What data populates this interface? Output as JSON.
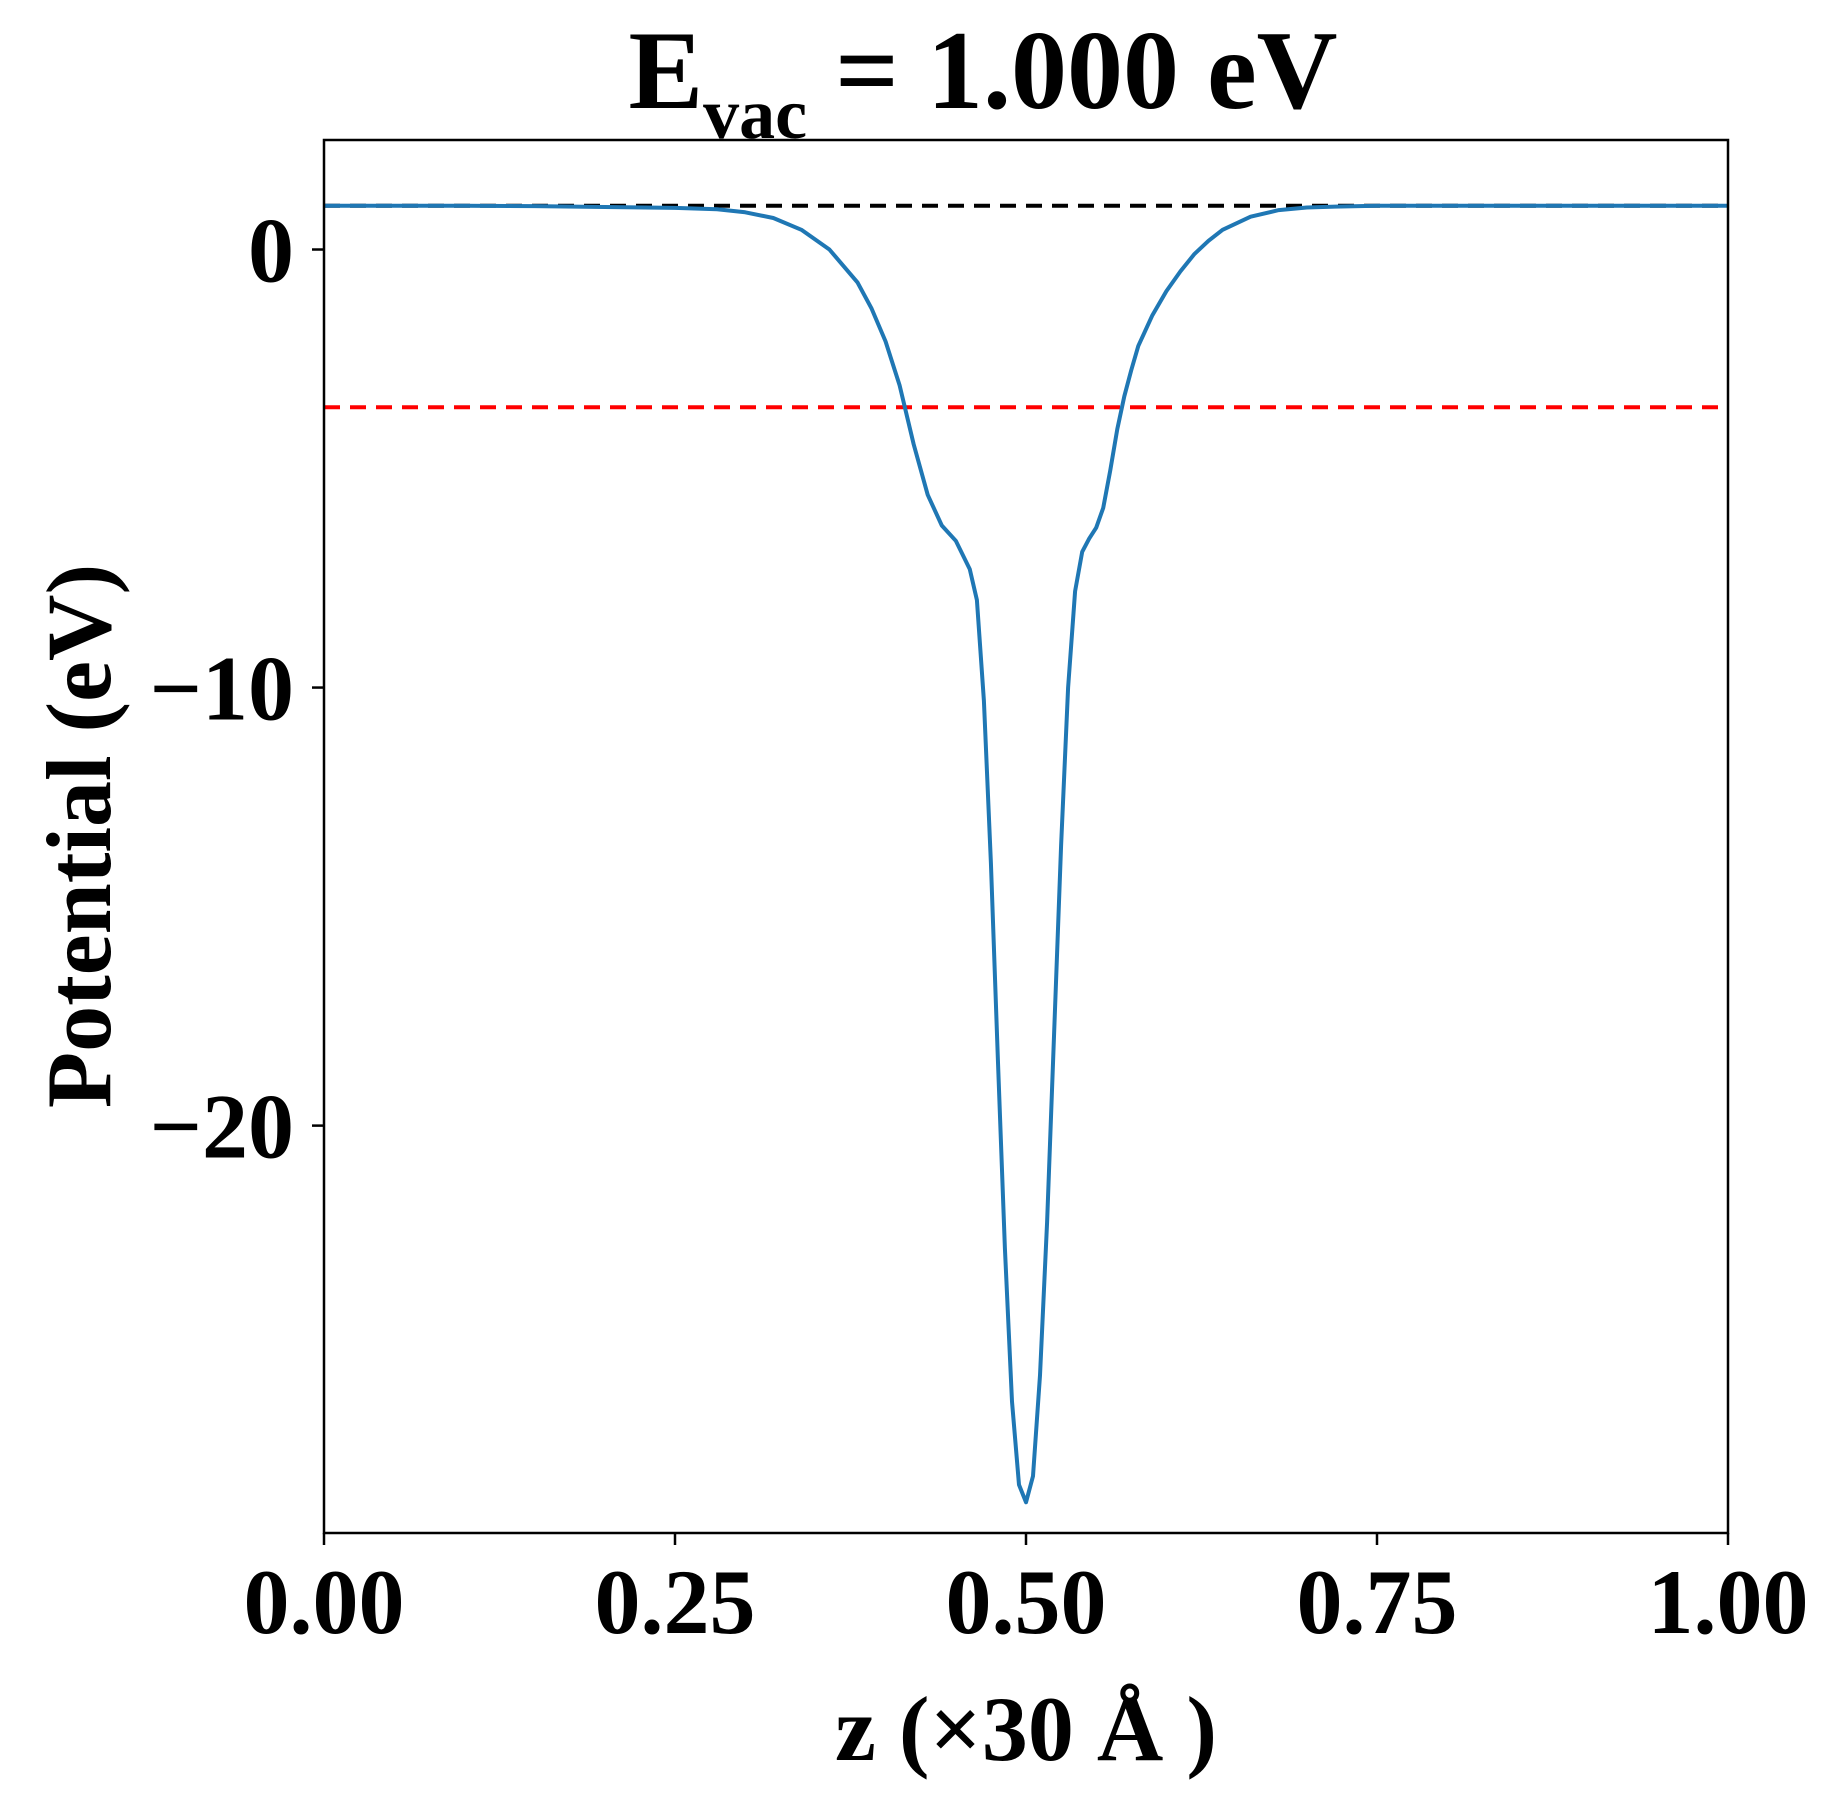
{
  "chart_data": {
    "type": "line",
    "title": {
      "main": "E",
      "subscript": "vac",
      "rest": " = 1.000 eV"
    },
    "xlabel": "z (×30 Å )",
    "ylabel": "Potential (eV)",
    "xlim": [
      0.0,
      1.0
    ],
    "ylim": [
      -29.3,
      2.5
    ],
    "xticks": [
      0.0,
      0.25,
      0.5,
      0.75,
      1.0
    ],
    "xtick_labels": [
      "0.00",
      "0.25",
      "0.50",
      "0.75",
      "1.00"
    ],
    "yticks": [
      0,
      -10,
      -20
    ],
    "ytick_labels": [
      "0",
      "−10",
      "−20"
    ],
    "grid": false,
    "legend": "none",
    "series": [
      {
        "color": "#1f77b4",
        "x": [
          0.0,
          0.05,
          0.1,
          0.15,
          0.2,
          0.25,
          0.28,
          0.3,
          0.32,
          0.34,
          0.36,
          0.38,
          0.39,
          0.4,
          0.41,
          0.42,
          0.43,
          0.44,
          0.45,
          0.46,
          0.465,
          0.47,
          0.475,
          0.48,
          0.485,
          0.49,
          0.495,
          0.5,
          0.505,
          0.51,
          0.515,
          0.52,
          0.525,
          0.53,
          0.535,
          0.54,
          0.545,
          0.55,
          0.555,
          0.56,
          0.565,
          0.57,
          0.575,
          0.58,
          0.59,
          0.6,
          0.61,
          0.62,
          0.63,
          0.64,
          0.66,
          0.68,
          0.7,
          0.72,
          0.75,
          0.8,
          0.85,
          0.9,
          0.95,
          1.0
        ],
        "y": [
          1.0,
          1.0,
          1.0,
          0.99,
          0.97,
          0.95,
          0.92,
          0.85,
          0.72,
          0.45,
          0.0,
          -0.75,
          -1.35,
          -2.1,
          -3.1,
          -4.45,
          -5.6,
          -6.3,
          -6.65,
          -7.3,
          -8.0,
          -10.3,
          -14.0,
          -18.5,
          -22.8,
          -26.3,
          -28.2,
          -28.6,
          -28.0,
          -25.7,
          -22.2,
          -17.9,
          -13.6,
          -10.0,
          -7.8,
          -6.9,
          -6.6,
          -6.35,
          -5.9,
          -5.05,
          -4.1,
          -3.35,
          -2.75,
          -2.2,
          -1.5,
          -0.95,
          -0.5,
          -0.1,
          0.2,
          0.45,
          0.75,
          0.9,
          0.96,
          0.98,
          1.0,
          1.0,
          1.0,
          1.0,
          1.0,
          1.0
        ]
      }
    ],
    "reference_lines": [
      {
        "y": 1.0,
        "color": "#000000",
        "style": "dashed"
      },
      {
        "y": -3.6,
        "color": "#ff0000",
        "style": "dashed"
      }
    ]
  }
}
